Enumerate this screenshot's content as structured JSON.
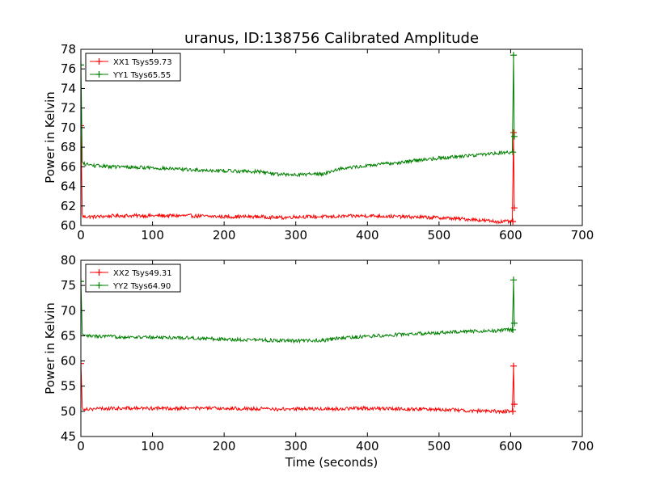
{
  "figure": {
    "title": "uranus, ID:138756 Calibrated Amplitude"
  },
  "chart_data": [
    {
      "type": "line",
      "title": "uranus, ID:138756 Calibrated Amplitude",
      "xlabel": "",
      "ylabel": "Power in Kelvin",
      "xlim": [
        0,
        700
      ],
      "ylim": [
        60,
        78
      ],
      "xticks": [
        "0",
        "100",
        "200",
        "300",
        "400",
        "500",
        "600",
        "700"
      ],
      "yticks": [
        "60",
        "62",
        "64",
        "66",
        "68",
        "70",
        "72",
        "74",
        "76",
        "78"
      ],
      "grid": false,
      "legend_position": "top-left",
      "series": [
        {
          "name": "XX1 Tsys59.73",
          "color": "#ff0000",
          "x": [
            0,
            2,
            4,
            20,
            50,
            100,
            150,
            200,
            250,
            280,
            300,
            350,
            400,
            450,
            500,
            550,
            580,
            603,
            604,
            605
          ],
          "y": [
            70.2,
            61.0,
            60.9,
            60.9,
            61.0,
            61.0,
            61.0,
            60.9,
            60.9,
            60.8,
            60.9,
            60.9,
            61.0,
            60.9,
            60.8,
            60.6,
            60.4,
            60.4,
            69.5,
            61.8
          ]
        },
        {
          "name": "YY1 Tsys65.55",
          "color": "#008000",
          "x": [
            0,
            2,
            4,
            20,
            50,
            100,
            150,
            200,
            250,
            280,
            300,
            340,
            360,
            400,
            450,
            500,
            550,
            580,
            603,
            604,
            605
          ],
          "y": [
            76.4,
            66.4,
            66.3,
            66.1,
            66.0,
            65.9,
            65.7,
            65.6,
            65.5,
            65.2,
            65.2,
            65.3,
            65.8,
            66.1,
            66.5,
            66.9,
            67.2,
            67.4,
            67.5,
            77.4,
            69.1
          ]
        }
      ]
    },
    {
      "type": "line",
      "title": "",
      "xlabel": "Time (seconds)",
      "ylabel": "Power in Kelvin",
      "xlim": [
        0,
        700
      ],
      "ylim": [
        45,
        80
      ],
      "xticks": [
        "0",
        "100",
        "200",
        "300",
        "400",
        "500",
        "600",
        "700"
      ],
      "yticks": [
        "45",
        "50",
        "55",
        "60",
        "65",
        "70",
        "75",
        "80"
      ],
      "grid": false,
      "legend_position": "top-left",
      "series": [
        {
          "name": "XX2 Tsys49.31",
          "color": "#ff0000",
          "x": [
            0,
            2,
            4,
            20,
            50,
            100,
            150,
            200,
            250,
            280,
            300,
            350,
            400,
            450,
            500,
            550,
            580,
            603,
            604,
            605
          ],
          "y": [
            59.5,
            50.6,
            50.5,
            50.5,
            50.6,
            50.6,
            50.6,
            50.6,
            50.5,
            50.4,
            50.5,
            50.5,
            50.6,
            50.5,
            50.4,
            50.1,
            50.0,
            50.0,
            59.0,
            51.4
          ]
        },
        {
          "name": "YY2 Tsys64.90",
          "color": "#008000",
          "x": [
            0,
            2,
            4,
            20,
            50,
            100,
            150,
            200,
            250,
            280,
            300,
            340,
            360,
            400,
            450,
            500,
            550,
            580,
            603,
            604,
            605
          ],
          "y": [
            75.8,
            65.1,
            65.0,
            64.9,
            64.8,
            64.7,
            64.6,
            64.3,
            64.2,
            64.0,
            64.0,
            64.1,
            64.5,
            64.9,
            65.3,
            65.6,
            65.9,
            66.0,
            66.2,
            76.1,
            67.5
          ]
        }
      ]
    }
  ]
}
